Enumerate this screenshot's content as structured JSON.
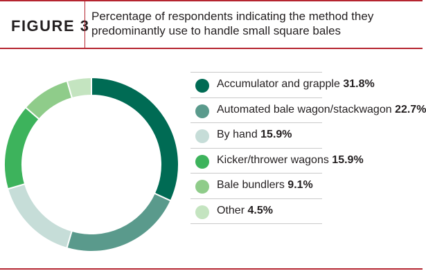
{
  "header": {
    "figure_label": "FIGURE 3",
    "title": "Percentage of respondents indicating the method they predominantly use to handle small square bales"
  },
  "colors": {
    "rule": "#b5242f",
    "text": "#231f20"
  },
  "chart_data": {
    "type": "pie",
    "donut": true,
    "title": "Percentage of respondents indicating the method they predominantly use to handle small square bales",
    "slices": [
      {
        "label": "Accumulator and grapple",
        "value": 31.8,
        "value_label": "31.8%",
        "color": "#006b54"
      },
      {
        "label": "Automated bale wagon/stackwagon",
        "value": 22.7,
        "value_label": "22.7%",
        "color": "#5a9a8c"
      },
      {
        "label": "By hand",
        "value": 15.9,
        "value_label": "15.9%",
        "color": "#c6ddd8"
      },
      {
        "label": "Kicker/thrower wagons",
        "value": 15.9,
        "value_label": "15.9%",
        "color": "#3db35c"
      },
      {
        "label": "Bale bundlers",
        "value": 9.1,
        "value_label": "9.1%",
        "color": "#8fcc8a"
      },
      {
        "label": "Other",
        "value": 4.5,
        "value_label": "4.5%",
        "color": "#c4e4c0"
      }
    ],
    "legend_position": "right"
  }
}
